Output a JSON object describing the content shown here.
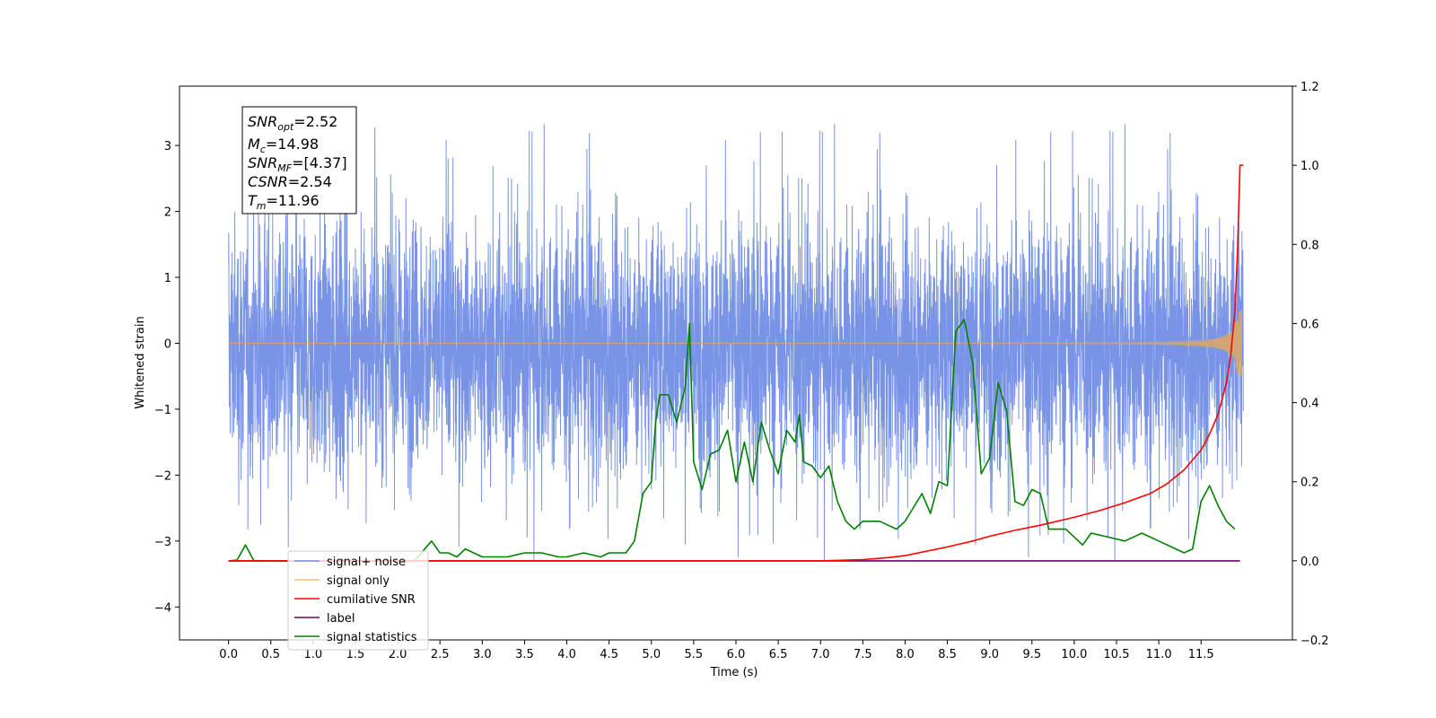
{
  "chart_data": {
    "type": "line",
    "xlabel": "Time (s)",
    "ylabel": "Whitened strain",
    "xlim": [
      -0.58,
      12.58
    ],
    "ylim": [
      -4.5,
      3.9
    ],
    "y2lim": [
      -0.2,
      1.2
    ],
    "x_ticks": [
      "0.0",
      "0.5",
      "1.0",
      "1.5",
      "2.0",
      "2.5",
      "3.0",
      "3.5",
      "4.0",
      "4.5",
      "5.0",
      "5.5",
      "6.0",
      "6.5",
      "7.0",
      "7.5",
      "8.0",
      "8.5",
      "9.0",
      "9.5",
      "10.0",
      "10.5",
      "11.0",
      "11.5"
    ],
    "y_ticks": [
      "3",
      "2",
      "1",
      "0",
      "−1",
      "−2",
      "−3",
      "−4"
    ],
    "y2_ticks": [
      "1.2",
      "1.0",
      "0.8",
      "0.6",
      "0.4",
      "0.2",
      "0.0",
      "−0.2"
    ],
    "legend_position": "lower-left",
    "annotation": {
      "snr_opt": {
        "label": "SNR",
        "sub": "opt",
        "value": "=2.52"
      },
      "mc": {
        "label": "M",
        "sub": "c",
        "value": "=14.98"
      },
      "snr_mf": {
        "label": "SNR",
        "sub": "MF",
        "value": "=[4.37]"
      },
      "csnr": {
        "label": "CSNR",
        "value": "=2.54"
      },
      "tm": {
        "label": "T",
        "sub": "m",
        "value": "=11.96"
      }
    },
    "series": [
      {
        "name": "signal+ noise",
        "color": "#7994e6",
        "axis": "left",
        "x_range": [
          0.0,
          12.0
        ],
        "typical_band": [
          -1.7,
          1.6
        ],
        "extreme_range": [
          -4.1,
          3.5
        ]
      },
      {
        "name": "signal only",
        "color": "#ffbf66",
        "axis": "left",
        "x_range": [
          0.0,
          12.0
        ],
        "note_peak_amplitude": 0.5
      },
      {
        "name": "cumilative SNR",
        "color": "#ff0000",
        "axis": "right",
        "x": [
          0.0,
          7.0,
          7.5,
          7.8,
          8.0,
          8.2,
          8.5,
          8.8,
          9.0,
          9.3,
          9.6,
          10.0,
          10.3,
          10.6,
          10.9,
          11.1,
          11.3,
          11.5,
          11.6,
          11.7,
          11.8,
          11.85,
          11.9,
          11.93,
          11.96,
          12.0
        ],
        "y": [
          0.0,
          0.0,
          0.003,
          0.008,
          0.013,
          0.022,
          0.035,
          0.05,
          0.062,
          0.077,
          0.09,
          0.11,
          0.127,
          0.147,
          0.17,
          0.195,
          0.23,
          0.28,
          0.32,
          0.37,
          0.45,
          0.52,
          0.63,
          0.78,
          1.0,
          1.0
        ]
      },
      {
        "name": "label",
        "color": "#6a006a",
        "axis": "right",
        "x": [
          0.0,
          11.96
        ],
        "y": [
          0.0,
          0.0
        ]
      },
      {
        "name": "signal statistics",
        "color": "#008000",
        "axis": "right",
        "x": [
          0.0,
          0.1,
          0.2,
          0.3,
          0.5,
          0.8,
          1.0,
          1.2,
          1.5,
          1.8,
          2.0,
          2.2,
          2.4,
          2.5,
          2.6,
          2.7,
          2.8,
          3.0,
          3.3,
          3.5,
          3.7,
          3.9,
          4.0,
          4.2,
          4.4,
          4.5,
          4.7,
          4.8,
          4.9,
          5.0,
          5.05,
          5.1,
          5.2,
          5.3,
          5.4,
          5.45,
          5.5,
          5.6,
          5.7,
          5.8,
          5.9,
          6.0,
          6.1,
          6.2,
          6.3,
          6.4,
          6.5,
          6.6,
          6.7,
          6.75,
          6.8,
          6.9,
          7.0,
          7.1,
          7.2,
          7.3,
          7.4,
          7.5,
          7.7,
          7.9,
          8.0,
          8.2,
          8.3,
          8.4,
          8.5,
          8.6,
          8.7,
          8.8,
          8.9,
          9.0,
          9.1,
          9.2,
          9.3,
          9.4,
          9.5,
          9.6,
          9.7,
          9.9,
          10.1,
          10.2,
          10.4,
          10.6,
          10.8,
          11.0,
          11.2,
          11.3,
          11.4,
          11.5,
          11.6,
          11.7,
          11.8,
          11.9
        ],
        "y": [
          0.0,
          0.002,
          0.04,
          0.0,
          0.0,
          0.0,
          0.0,
          0.0,
          0.0,
          0.0,
          0.0,
          0.0,
          0.05,
          0.02,
          0.02,
          0.01,
          0.03,
          0.01,
          0.01,
          0.02,
          0.02,
          0.01,
          0.01,
          0.02,
          0.01,
          0.02,
          0.02,
          0.05,
          0.17,
          0.2,
          0.35,
          0.42,
          0.42,
          0.35,
          0.44,
          0.6,
          0.25,
          0.18,
          0.27,
          0.28,
          0.33,
          0.2,
          0.3,
          0.2,
          0.35,
          0.28,
          0.22,
          0.33,
          0.3,
          0.37,
          0.25,
          0.24,
          0.21,
          0.24,
          0.15,
          0.1,
          0.08,
          0.1,
          0.1,
          0.08,
          0.1,
          0.17,
          0.12,
          0.2,
          0.19,
          0.58,
          0.61,
          0.5,
          0.22,
          0.26,
          0.45,
          0.38,
          0.15,
          0.14,
          0.18,
          0.17,
          0.08,
          0.08,
          0.04,
          0.07,
          0.06,
          0.05,
          0.07,
          0.05,
          0.03,
          0.02,
          0.03,
          0.15,
          0.19,
          0.14,
          0.1,
          0.08
        ]
      }
    ]
  }
}
